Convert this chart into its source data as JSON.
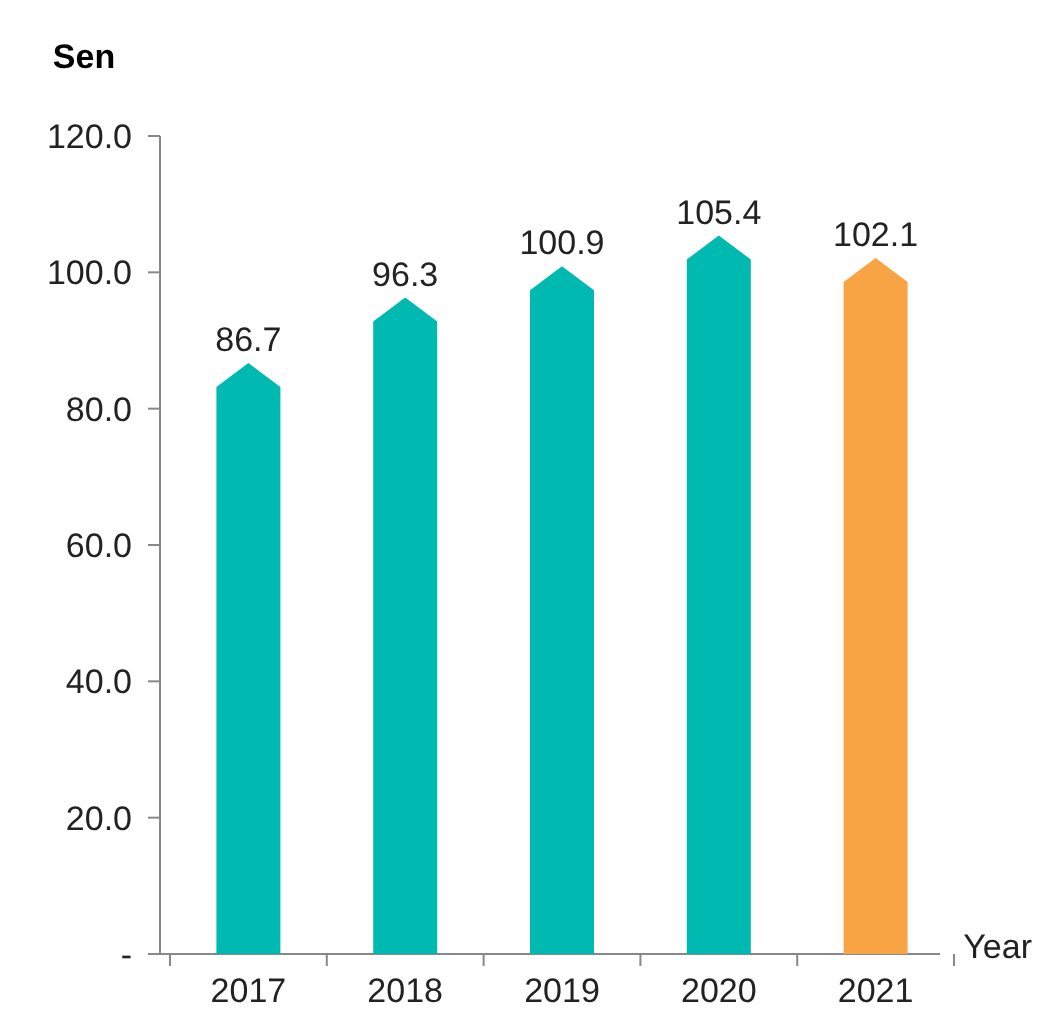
{
  "chart_data": {
    "type": "bar",
    "ylabel": "Sen",
    "xlabel": "Year",
    "categories": [
      "2017",
      "2018",
      "2019",
      "2020",
      "2021"
    ],
    "values": [
      86.7,
      96.3,
      100.9,
      105.4,
      102.1
    ],
    "colors": [
      "#00b9b1",
      "#00b9b1",
      "#00b9b1",
      "#00b9b1",
      "#f9a444"
    ],
    "ylim": [
      0,
      120
    ],
    "yticks": [
      {
        "value": 0,
        "label": "-"
      },
      {
        "value": 20,
        "label": "20.0"
      },
      {
        "value": 40,
        "label": "40.0"
      },
      {
        "value": 60,
        "label": "60.0"
      },
      {
        "value": 80,
        "label": "80.0"
      },
      {
        "value": 100,
        "label": "100.0"
      },
      {
        "value": 120,
        "label": "120.0"
      }
    ],
    "data_labels": true,
    "grid": false
  }
}
